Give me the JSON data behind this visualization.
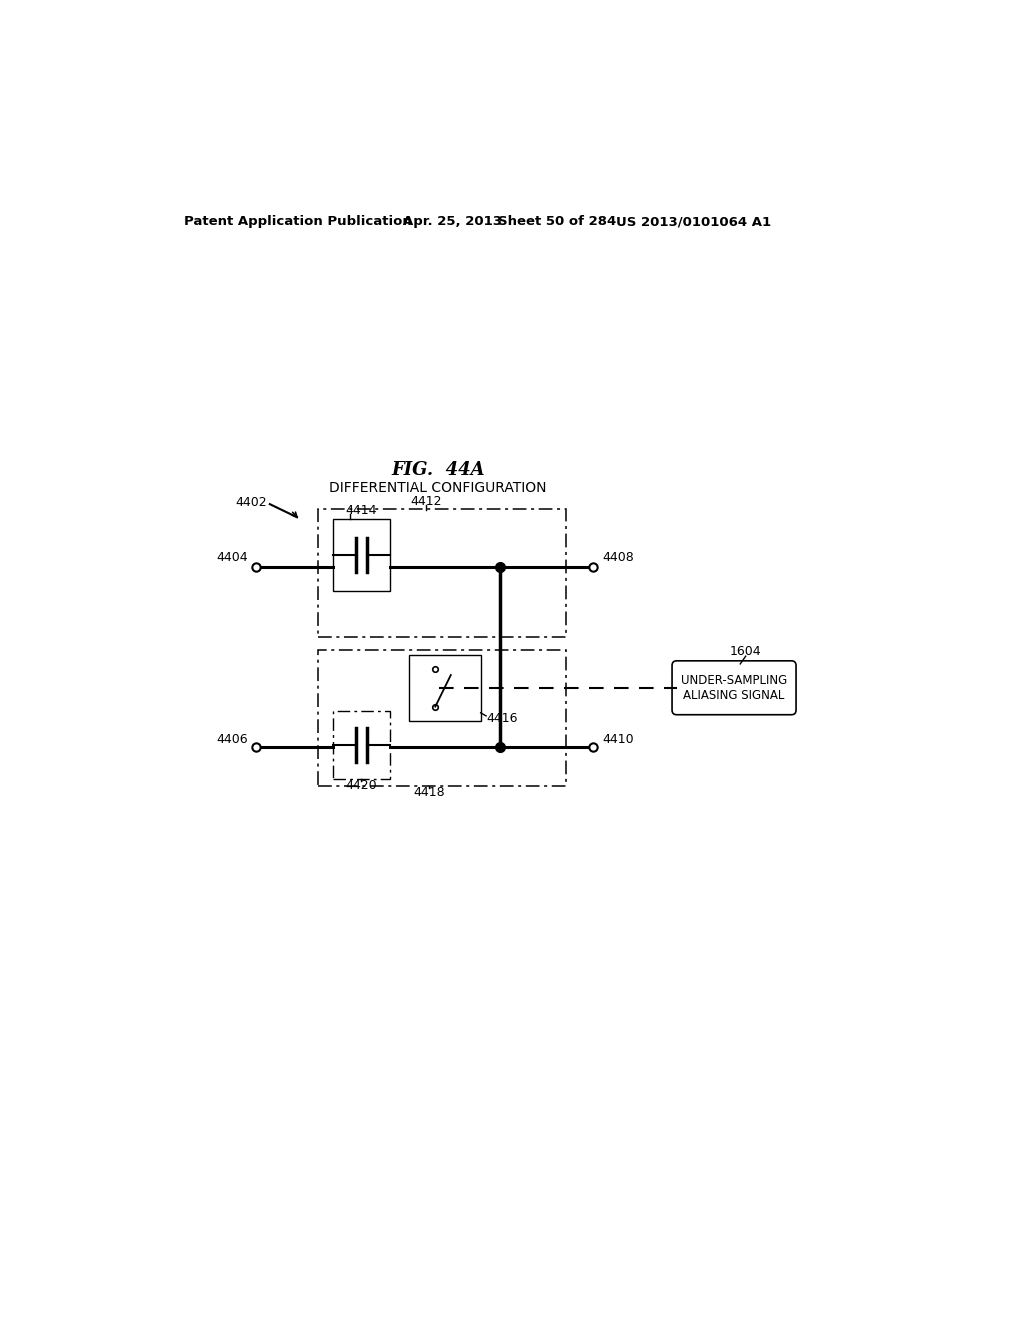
{
  "bg_color": "#ffffff",
  "header_text": "Patent Application Publication",
  "header_date": "Apr. 25, 2013",
  "header_sheet": "Sheet 50 of 284",
  "header_patent": "US 2013/0101064 A1",
  "fig_title": "FIG.  44A",
  "fig_subtitle": "DIFFERENTIAL CONFIGURATION",
  "label_4402": "4402",
  "label_4404": "4404",
  "label_4406": "4406",
  "label_4408": "4408",
  "label_4410": "4410",
  "label_4412": "4412",
  "label_4414": "4414",
  "label_4416": "4416",
  "label_4418": "4418",
  "label_4420": "4420",
  "label_1604": "1604",
  "aliasing_line1": "UNDER-SAMPLING",
  "aliasing_line2": "ALIASING SIGNAL"
}
